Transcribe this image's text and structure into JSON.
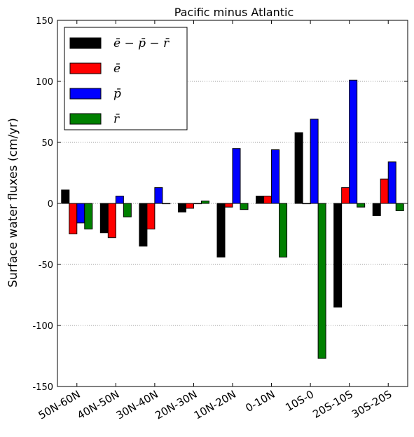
{
  "chart_data": {
    "type": "bar",
    "title": "Pacific minus Atlantic",
    "xlabel": "",
    "ylabel": "Surface water fluxes  (cm/yr)",
    "ylim": [
      -150,
      150
    ],
    "yticks": [
      -150,
      -100,
      -50,
      0,
      50,
      100,
      150
    ],
    "grid": "horizontal dotted at y ticks",
    "legend_position": "top-left",
    "categories": [
      "50N-60N",
      "40N-50N",
      "30N-40N",
      "20N-30N",
      "10N-20N",
      "0-10N",
      "10S-0",
      "20S-10S",
      "30S-20S"
    ],
    "series": [
      {
        "name": "ē − p̄ − r̄",
        "color": "#000000",
        "values": [
          11,
          -24,
          -35,
          -7,
          -44,
          6,
          58,
          -85,
          -10
        ]
      },
      {
        "name": "ē",
        "color": "#ff0000",
        "values": [
          -25,
          -28,
          -21,
          -4,
          -3,
          6,
          0,
          13,
          20
        ]
      },
      {
        "name": "p̄",
        "color": "#0000ff",
        "values": [
          -16,
          6,
          13,
          0,
          45,
          44,
          69,
          101,
          34
        ]
      },
      {
        "name": "r̄",
        "color": "#008000",
        "values": [
          -21,
          -11,
          0,
          2,
          -5,
          -44,
          -127,
          -3,
          -6
        ]
      }
    ]
  }
}
